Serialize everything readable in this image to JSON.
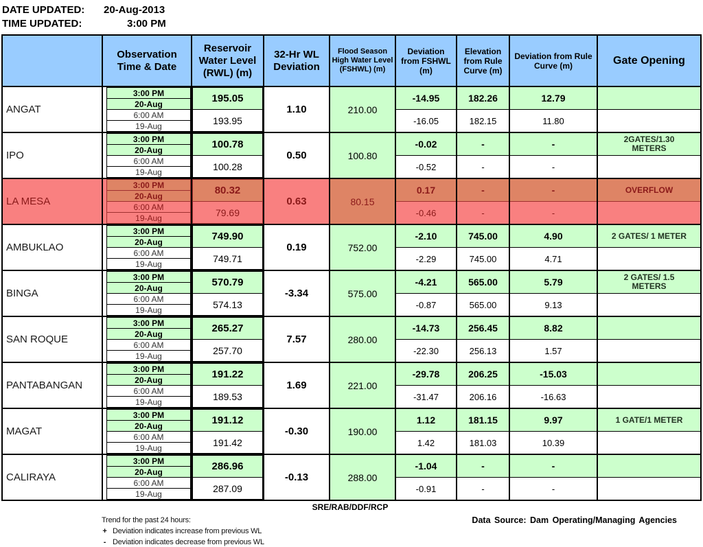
{
  "meta": {
    "date_label": "DATE UPDATED:",
    "date_value": "20-Aug-2013",
    "time_label": "TIME UPDATED:",
    "time_value": "3:00 PM"
  },
  "colors": {
    "header_blue": "#99CCFF",
    "highlight_green": "#CCFFCC",
    "overflow_light": "#F98080",
    "overflow_dark": "#DE8465",
    "overflow_text": "#8B1A1A",
    "gate_text": "#223322"
  },
  "table": {
    "headers": [
      {
        "id": "dam",
        "label": ""
      },
      {
        "id": "obs",
        "label": "Observation Time & Date"
      },
      {
        "id": "rwl",
        "label": "Reservoir Water Level (RWL) (m)"
      },
      {
        "id": "dev32",
        "label": "32-Hr WL Deviation"
      },
      {
        "id": "fshwl",
        "label": "Flood Season High Water Level (FSHWL) (m)"
      },
      {
        "id": "devfshwl",
        "label": "Deviation from FSHWL (m)"
      },
      {
        "id": "elevrc",
        "label": "Elevation from Rule Curve (m)"
      },
      {
        "id": "devrc",
        "label": "Deviation from Rule Curve (m)"
      },
      {
        "id": "gate",
        "label": "Gate Opening"
      }
    ],
    "rows": [
      {
        "dam": "ANGAT",
        "highlight": false,
        "obs": [
          "3:00 PM",
          "20-Aug",
          "6:00 AM",
          "19-Aug"
        ],
        "rwl": [
          "195.05",
          "193.95"
        ],
        "dev32": "1.10",
        "fshwl": "210.00",
        "dev_fshwl": [
          "-14.95",
          "-16.05"
        ],
        "elev_rule_curve": [
          "182.26",
          "182.15"
        ],
        "dev_rule_curve": [
          "12.79",
          "11.80"
        ],
        "gate": [
          "",
          ""
        ]
      },
      {
        "dam": "IPO",
        "highlight": false,
        "obs": [
          "3:00 PM",
          "20-Aug",
          "6:00 AM",
          "19-Aug"
        ],
        "rwl": [
          "100.78",
          "100.28"
        ],
        "dev32": "0.50",
        "fshwl": "100.80",
        "dev_fshwl": [
          "-0.02",
          "-0.52"
        ],
        "elev_rule_curve": [
          "-",
          "-"
        ],
        "dev_rule_curve": [
          "-",
          "-"
        ],
        "gate": [
          "2GATES/1.30 METERS",
          ""
        ]
      },
      {
        "dam": "LA MESA",
        "highlight": true,
        "obs": [
          "3:00 PM",
          "20-Aug",
          "6:00 AM",
          "19-Aug"
        ],
        "rwl": [
          "80.32",
          "79.69"
        ],
        "dev32": "0.63",
        "fshwl": "80.15",
        "dev_fshwl": [
          "0.17",
          "-0.46"
        ],
        "elev_rule_curve": [
          "-",
          "-"
        ],
        "dev_rule_curve": [
          "-",
          "-"
        ],
        "gate": [
          "OVERFLOW",
          ""
        ]
      },
      {
        "dam": "AMBUKLAO",
        "highlight": false,
        "obs": [
          "3:00 PM",
          "20-Aug",
          "6:00 AM",
          "19-Aug"
        ],
        "rwl": [
          "749.90",
          "749.71"
        ],
        "dev32": "0.19",
        "fshwl": "752.00",
        "dev_fshwl": [
          "-2.10",
          "-2.29"
        ],
        "elev_rule_curve": [
          "745.00",
          "745.00"
        ],
        "dev_rule_curve": [
          "4.90",
          "4.71"
        ],
        "gate": [
          "2 GATES/ 1 METER",
          ""
        ]
      },
      {
        "dam": "BINGA",
        "highlight": false,
        "obs": [
          "3:00 PM",
          "20-Aug",
          "6:00 AM",
          "19-Aug"
        ],
        "rwl": [
          "570.79",
          "574.13"
        ],
        "dev32": "-3.34",
        "fshwl": "575.00",
        "dev_fshwl": [
          "-4.21",
          "-0.87"
        ],
        "elev_rule_curve": [
          "565.00",
          "565.00"
        ],
        "dev_rule_curve": [
          "5.79",
          "9.13"
        ],
        "gate": [
          "2 GATES/ 1.5 METERS",
          ""
        ]
      },
      {
        "dam": "SAN ROQUE",
        "highlight": false,
        "obs": [
          "3:00 PM",
          "20-Aug",
          "6:00 AM",
          "19-Aug"
        ],
        "rwl": [
          "265.27",
          "257.70"
        ],
        "dev32": "7.57",
        "fshwl": "280.00",
        "dev_fshwl": [
          "-14.73",
          "-22.30"
        ],
        "elev_rule_curve": [
          "256.45",
          "256.13"
        ],
        "dev_rule_curve": [
          "8.82",
          "1.57"
        ],
        "gate": [
          "",
          ""
        ]
      },
      {
        "dam": "PANTABANGAN",
        "highlight": false,
        "obs": [
          "3:00 PM",
          "20-Aug",
          "6:00 AM",
          "19-Aug"
        ],
        "rwl": [
          "191.22",
          "189.53"
        ],
        "dev32": "1.69",
        "fshwl": "221.00",
        "dev_fshwl": [
          "-29.78",
          "-31.47"
        ],
        "elev_rule_curve": [
          "206.25",
          "206.16"
        ],
        "dev_rule_curve": [
          "-15.03",
          "-16.63"
        ],
        "gate": [
          "",
          ""
        ]
      },
      {
        "dam": "MAGAT",
        "highlight": false,
        "obs": [
          "3:00 PM",
          "20-Aug",
          "6:00 AM",
          "19-Aug"
        ],
        "rwl": [
          "191.12",
          "191.42"
        ],
        "dev32": "-0.30",
        "fshwl": "190.00",
        "dev_fshwl": [
          "1.12",
          "1.42"
        ],
        "elev_rule_curve": [
          "181.15",
          "181.03"
        ],
        "dev_rule_curve": [
          "9.97",
          "10.39"
        ],
        "gate": [
          "1 GATE/1 METER",
          ""
        ]
      },
      {
        "dam": "CALIRAYA",
        "highlight": false,
        "obs": [
          "3:00 PM",
          "20-Aug",
          "6:00 AM",
          "19-Aug"
        ],
        "rwl": [
          "286.96",
          "287.09"
        ],
        "dev32": "-0.13",
        "fshwl": "288.00",
        "dev_fshwl": [
          "-1.04",
          "-0.91"
        ],
        "elev_rule_curve": [
          "-",
          "-"
        ],
        "dev_rule_curve": [
          "-",
          "-"
        ],
        "gate": [
          "",
          ""
        ]
      }
    ]
  },
  "footer": {
    "signature": "SRE/RAB/DDF/RCP",
    "trend_title": "Trend for the past 24 hours:",
    "plus_symbol": "+",
    "plus_text": "Deviation indicates increase from previous WL",
    "minus_symbol": "-",
    "minus_text": "Deviation indicates decrease from previous WL",
    "data_source": "Data Source: Dam Operating/Managing Agencies"
  }
}
